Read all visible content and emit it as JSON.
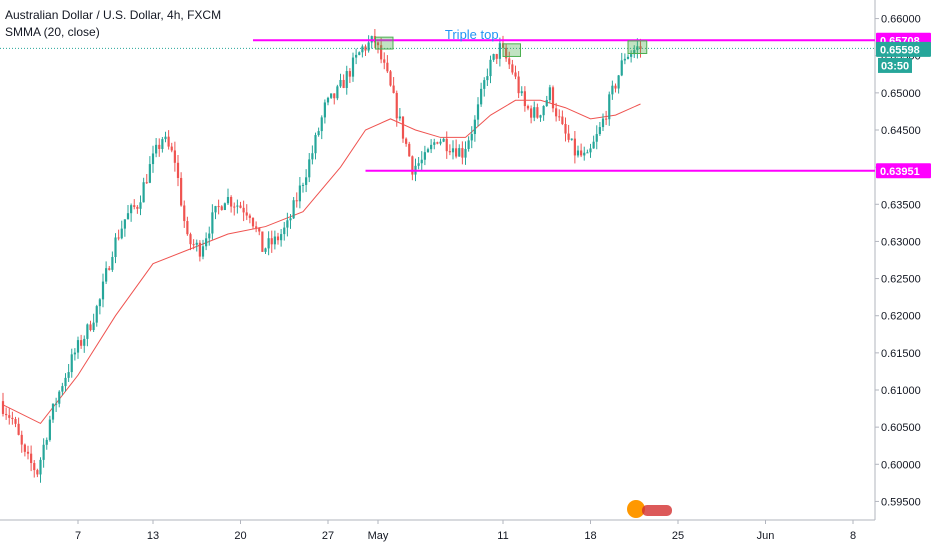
{
  "header": {
    "title": "Australian Dollar / U.S. Dollar, 4h, FXCM",
    "indicator": "SMMA (20, close)"
  },
  "colors": {
    "up": "#26a69a",
    "down": "#ef5350",
    "ma": "#ef5350",
    "resistance": "#ff00ff",
    "support": "#ff00ff",
    "box": "#4caf50",
    "annotation": "#2196f3",
    "price_tag": "#26a69a",
    "grid_axis": "#e0e3eb"
  },
  "chart_data": {
    "type": "candlestick",
    "symbol": "AUDUSD",
    "timeframe": "4h",
    "annotation": "Triple top",
    "y_ticks": [
      "0.66000",
      "0.65500",
      "0.65000",
      "0.64500",
      "0.64000",
      "0.63500",
      "0.63000",
      "0.62500",
      "0.62000",
      "0.61500",
      "0.61000",
      "0.60500",
      "0.60000",
      "0.59500"
    ],
    "y_tick_values": [
      0.66,
      0.655,
      0.65,
      0.645,
      0.64,
      0.635,
      0.63,
      0.625,
      0.62,
      0.615,
      0.61,
      0.605,
      0.6,
      0.595
    ],
    "ylim": [
      0.5925,
      0.6625
    ],
    "x_ticks": [
      "7",
      "13",
      "20",
      "27",
      "May",
      "11",
      "18",
      "25",
      "Jun",
      "8"
    ],
    "x_tick_days": [
      6,
      12,
      19,
      26,
      30,
      40,
      47,
      54,
      61,
      68
    ],
    "xlim": [
      0,
      70
    ],
    "last_bar_day": 51,
    "resistance": {
      "label": "0.65708",
      "value": 0.65708,
      "from_day": 20,
      "to_day": 70
    },
    "support": {
      "label": "0.63951",
      "value": 0.63951,
      "from_day": 29,
      "to_day": 70
    },
    "current": {
      "label": "0.65598",
      "value": 0.65598,
      "countdown": "03:50"
    },
    "boxes": [
      {
        "day_start": 29.8,
        "day_end": 31.2,
        "low": 0.6559,
        "high": 0.6575
      },
      {
        "day_start": 40.0,
        "day_end": 41.4,
        "low": 0.6549,
        "high": 0.6566
      },
      {
        "day_start": 50.0,
        "day_end": 51.5,
        "low": 0.6553,
        "high": 0.657
      }
    ],
    "path_points": [
      [
        0,
        0.6085
      ],
      [
        1,
        0.606
      ],
      [
        2,
        0.601
      ],
      [
        3,
        0.599
      ],
      [
        4,
        0.606
      ],
      [
        5,
        0.611
      ],
      [
        6,
        0.615
      ],
      [
        7,
        0.618
      ],
      [
        8,
        0.622
      ],
      [
        9,
        0.629
      ],
      [
        10,
        0.633
      ],
      [
        11,
        0.635
      ],
      [
        12,
        0.64
      ],
      [
        13,
        0.644
      ],
      [
        14,
        0.641
      ],
      [
        15,
        0.63
      ],
      [
        16,
        0.629
      ],
      [
        17,
        0.633
      ],
      [
        18,
        0.636
      ],
      [
        19,
        0.635
      ],
      [
        20,
        0.634
      ],
      [
        21,
        0.629
      ],
      [
        22,
        0.63
      ],
      [
        23,
        0.632
      ],
      [
        24,
        0.637
      ],
      [
        25,
        0.642
      ],
      [
        26,
        0.648
      ],
      [
        27,
        0.65
      ],
      [
        28,
        0.653
      ],
      [
        29,
        0.656
      ],
      [
        30,
        0.657
      ],
      [
        31,
        0.652
      ],
      [
        32,
        0.646
      ],
      [
        33,
        0.64
      ],
      [
        34,
        0.641
      ],
      [
        35,
        0.644
      ],
      [
        36,
        0.643
      ],
      [
        37,
        0.642
      ],
      [
        38,
        0.646
      ],
      [
        39,
        0.653
      ],
      [
        40,
        0.656
      ],
      [
        41,
        0.653
      ],
      [
        42,
        0.648
      ],
      [
        43,
        0.647
      ],
      [
        44,
        0.65
      ],
      [
        45,
        0.645
      ],
      [
        46,
        0.642
      ],
      [
        47,
        0.641
      ],
      [
        48,
        0.645
      ],
      [
        49,
        0.65
      ],
      [
        50,
        0.655
      ],
      [
        51,
        0.656
      ]
    ],
    "bars_per_day": 4,
    "ma_points": [
      [
        0,
        0.608
      ],
      [
        3,
        0.6055
      ],
      [
        6,
        0.612
      ],
      [
        9,
        0.62
      ],
      [
        12,
        0.627
      ],
      [
        15,
        0.629
      ],
      [
        18,
        0.631
      ],
      [
        21,
        0.632
      ],
      [
        24,
        0.634
      ],
      [
        27,
        0.64
      ],
      [
        29,
        0.645
      ],
      [
        31,
        0.6465
      ],
      [
        33,
        0.645
      ],
      [
        35,
        0.644
      ],
      [
        37,
        0.644
      ],
      [
        39,
        0.647
      ],
      [
        41,
        0.649
      ],
      [
        43,
        0.649
      ],
      [
        45,
        0.648
      ],
      [
        47,
        0.6465
      ],
      [
        49,
        0.647
      ],
      [
        51,
        0.6485
      ]
    ]
  }
}
